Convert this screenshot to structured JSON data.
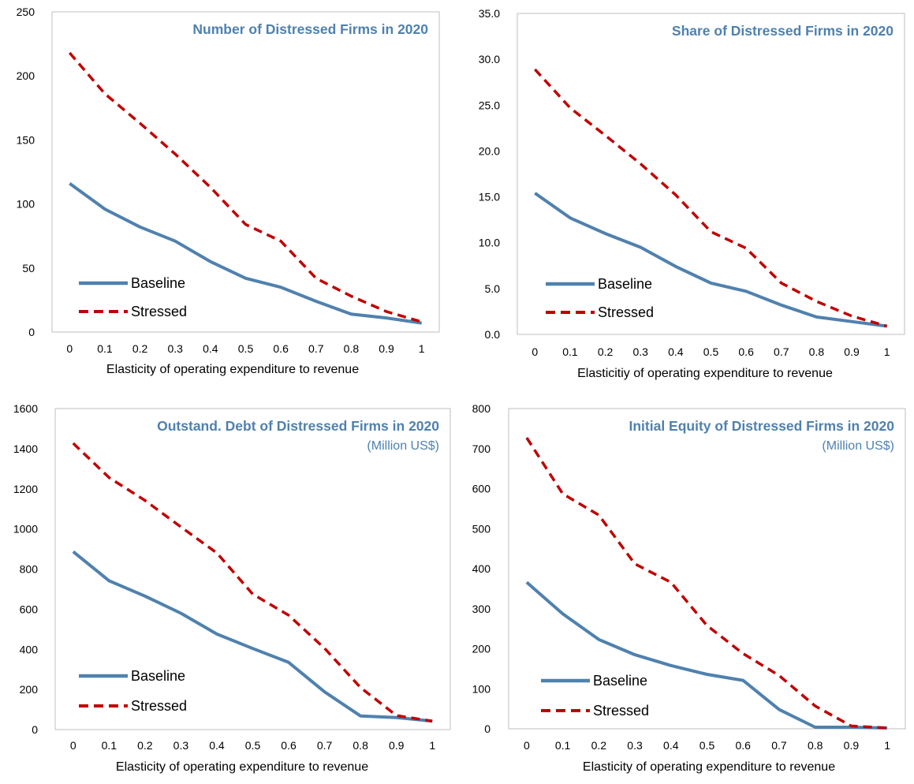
{
  "colors": {
    "baseline": "#4F81AE",
    "stressed": "#C00000",
    "title": "#4F81AE",
    "axis": "#BFBFBF"
  },
  "legend": {
    "baseline": "Baseline",
    "stressed": "Stressed",
    "placement": "bottom-left"
  },
  "chart_data": [
    {
      "type": "line",
      "title": "Number of Distressed Firms in 2020",
      "subtitle": "",
      "xlabel": "Elasticity of operating expenditure to revenue",
      "ylabel": "",
      "x": [
        "0",
        "0.1",
        "0.2",
        "0.3",
        "0.4",
        "0.5",
        "0.6",
        "0.7",
        "0.8",
        "0.9",
        "1"
      ],
      "ylim": [
        0,
        250
      ],
      "yticks": [
        "0",
        "50",
        "100",
        "150",
        "200",
        "250"
      ],
      "grid": false,
      "series": [
        {
          "name": "Baseline",
          "values": [
            116,
            96,
            82,
            71,
            55,
            42,
            35,
            24,
            14,
            11,
            7
          ]
        },
        {
          "name": "Stressed",
          "values": [
            218,
            186,
            163,
            139,
            113,
            84,
            71,
            42,
            28,
            16,
            8
          ]
        }
      ]
    },
    {
      "type": "line",
      "title": "Share of Distressed Firms in 2020",
      "subtitle": "",
      "xlabel": "Elasticitiy of operating expenditure to revenue",
      "ylabel": "",
      "x": [
        "0",
        "0.1",
        "0.2",
        "0.3",
        "0.4",
        "0.5",
        "0.6",
        "0.7",
        "0.8",
        "0.9",
        "1"
      ],
      "ylim": [
        0,
        35
      ],
      "yticks": [
        "0.0",
        "5.0",
        "10.0",
        "15.0",
        "20.0",
        "25.0",
        "30.0",
        "35.0"
      ],
      "grid": false,
      "series": [
        {
          "name": "Baseline",
          "values": [
            15.4,
            12.7,
            11.0,
            9.5,
            7.4,
            5.6,
            4.7,
            3.2,
            1.9,
            1.4,
            0.9
          ]
        },
        {
          "name": "Stressed",
          "values": [
            28.9,
            24.7,
            21.7,
            18.6,
            15.2,
            11.2,
            9.4,
            5.6,
            3.6,
            2.0,
            0.9
          ]
        }
      ]
    },
    {
      "type": "line",
      "title": "Outstand. Debt of Distressed Firms in 2020",
      "subtitle": "(Million US$)",
      "xlabel": "Elasticity of operating expenditure to revenue",
      "ylabel": "",
      "x": [
        "0",
        "0.1",
        "0.2",
        "0.3",
        "0.4",
        "0.5",
        "0.6",
        "0.7",
        "0.8",
        "0.9",
        "1"
      ],
      "ylim": [
        0,
        1600
      ],
      "yticks": [
        "0",
        "200",
        "400",
        "600",
        "800",
        "1000",
        "1200",
        "1400",
        "1600"
      ],
      "grid": false,
      "series": [
        {
          "name": "Baseline",
          "values": [
            887,
            742,
            665,
            580,
            476,
            404,
            335,
            188,
            68,
            60,
            42
          ]
        },
        {
          "name": "Stressed",
          "values": [
            1427,
            1256,
            1142,
            1010,
            880,
            675,
            570,
            405,
            210,
            70,
            42
          ]
        }
      ]
    },
    {
      "type": "line",
      "title": "Initial Equity of Distressed Firms in 2020",
      "subtitle": "(Million US$)",
      "xlabel": "Elasticity of operating expenditure to revenue",
      "ylabel": "",
      "x": [
        "0",
        "0.1",
        "0.2",
        "0.3",
        "0.4",
        "0.5",
        "0.6",
        "0.7",
        "0.8",
        "0.9",
        "1"
      ],
      "ylim": [
        0,
        800
      ],
      "yticks": [
        "0",
        "100",
        "200",
        "300",
        "400",
        "500",
        "600",
        "700",
        "800"
      ],
      "grid": false,
      "series": [
        {
          "name": "Baseline",
          "values": [
            366,
            287,
            223,
            185,
            158,
            136,
            121,
            48,
            4,
            4,
            2
          ]
        },
        {
          "name": "Stressed",
          "values": [
            727,
            587,
            534,
            412,
            366,
            258,
            188,
            133,
            57,
            7,
            2
          ]
        }
      ]
    }
  ]
}
